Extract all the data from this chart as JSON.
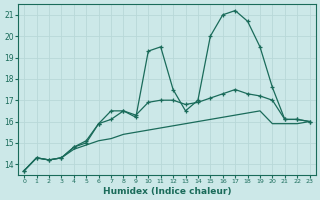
{
  "background_color": "#cce8e8",
  "grid_color": "#b8d8d8",
  "line_color": "#1a6b5a",
  "xlabel": "Humidex (Indice chaleur)",
  "xlim": [
    -0.5,
    23.5
  ],
  "ylim": [
    13.5,
    21.5
  ],
  "yticks": [
    14,
    15,
    16,
    17,
    18,
    19,
    20,
    21
  ],
  "xticks": [
    0,
    1,
    2,
    3,
    4,
    5,
    6,
    7,
    8,
    9,
    10,
    11,
    12,
    13,
    14,
    15,
    16,
    17,
    18,
    19,
    20,
    21,
    22,
    23
  ],
  "series": [
    {
      "x": [
        0,
        1,
        2,
        3,
        4,
        5,
        6,
        7,
        8,
        9,
        10,
        11,
        12,
        13,
        14,
        15,
        16,
        17,
        18,
        19,
        20,
        21,
        22,
        23
      ],
      "y": [
        13.7,
        14.3,
        14.2,
        14.3,
        14.8,
        15.1,
        15.9,
        16.5,
        16.5,
        16.2,
        19.3,
        19.5,
        17.5,
        16.5,
        17.0,
        20.0,
        21.0,
        21.2,
        20.7,
        19.5,
        17.6,
        16.1,
        16.1,
        16.0
      ],
      "marker": true
    },
    {
      "x": [
        0,
        1,
        2,
        3,
        4,
        5,
        6,
        7,
        8,
        9,
        10,
        11,
        12,
        13,
        14,
        15,
        16,
        17,
        18,
        19,
        20,
        21,
        22,
        23
      ],
      "y": [
        13.7,
        14.3,
        14.2,
        14.3,
        14.8,
        15.0,
        15.9,
        16.1,
        16.5,
        16.3,
        16.9,
        17.0,
        17.0,
        16.8,
        16.9,
        17.1,
        17.3,
        17.5,
        17.3,
        17.2,
        17.0,
        16.1,
        16.1,
        16.0
      ],
      "marker": true
    },
    {
      "x": [
        0,
        1,
        2,
        3,
        4,
        5,
        6,
        7,
        8,
        9,
        10,
        11,
        12,
        13,
        14,
        15,
        16,
        17,
        18,
        19,
        20,
        21,
        22,
        23
      ],
      "y": [
        13.7,
        14.3,
        14.2,
        14.3,
        14.7,
        14.9,
        15.1,
        15.2,
        15.4,
        15.5,
        15.6,
        15.7,
        15.8,
        15.9,
        16.0,
        16.1,
        16.2,
        16.3,
        16.4,
        16.5,
        15.9,
        15.9,
        15.9,
        16.0
      ],
      "marker": false
    }
  ]
}
